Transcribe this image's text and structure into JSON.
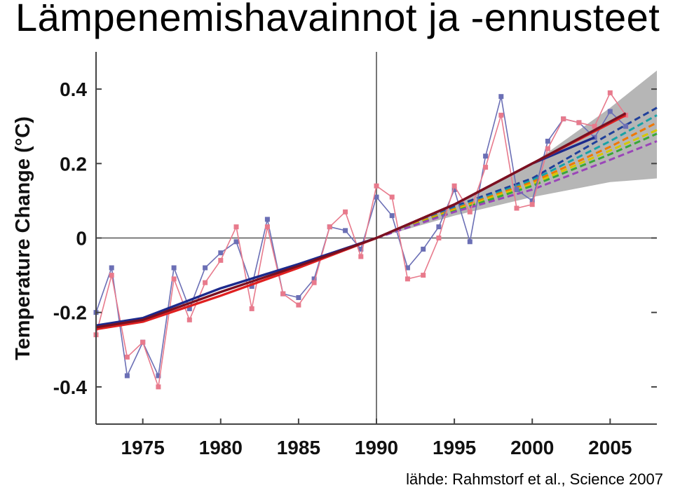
{
  "slide": {
    "title": "Lämpenemishavainnot ja -ennusteet",
    "citation": "lähde: Rahmstorf et al., Science 2007"
  },
  "chart_data": {
    "type": "line",
    "title": "",
    "xlabel": "",
    "ylabel": "Temperature Change (°C)",
    "xlim": [
      1972,
      2008
    ],
    "ylim": [
      -0.5,
      0.5
    ],
    "x_ticks": [
      1975,
      1980,
      1985,
      1990,
      1995,
      2000,
      2005
    ],
    "x_tick_labels": [
      "1975",
      "1980",
      "1985",
      "1990",
      "1995",
      "2000",
      "2005"
    ],
    "y_ticks": [
      0.4,
      0.2,
      0,
      -0.2,
      -0.4
    ],
    "y_tick_labels": [
      "0.4",
      "0.2",
      "0",
      "-0.2",
      "-0.4"
    ],
    "grid": false,
    "reference_lines": {
      "x": 1990,
      "y": 0
    },
    "projection_range": {
      "x": [
        1990,
        1995,
        2000,
        2005,
        2008
      ],
      "lower": [
        0,
        0.06,
        0.11,
        0.15,
        0.16
      ],
      "upper": [
        0,
        0.09,
        0.2,
        0.35,
        0.45
      ],
      "color": "#a9a9a9"
    },
    "series": [
      {
        "color": "#6b6fb5",
        "style": "markers",
        "x": [
          1972,
          1973,
          1974,
          1975,
          1976,
          1977,
          1978,
          1979,
          1980,
          1981,
          1982,
          1983,
          1984,
          1985,
          1986,
          1987,
          1988,
          1989,
          1990,
          1991,
          1992,
          1993,
          1994,
          1995,
          1996,
          1997,
          1998,
          1999,
          2000,
          2001,
          2002,
          2003,
          2004,
          2005,
          2006
        ],
        "values": [
          -0.2,
          -0.08,
          -0.37,
          -0.28,
          -0.37,
          -0.08,
          -0.19,
          -0.08,
          -0.04,
          -0.01,
          -0.13,
          0.05,
          -0.15,
          -0.16,
          -0.11,
          0.03,
          0.02,
          -0.03,
          0.11,
          0.06,
          -0.08,
          -0.03,
          0.03,
          0.13,
          -0.01,
          0.22,
          0.38,
          0.13,
          0.1,
          0.26,
          0.32,
          0.31,
          0.27,
          0.34,
          0.3
        ]
      },
      {
        "color": "#e87a8c",
        "style": "markers",
        "x": [
          1972,
          1973,
          1974,
          1975,
          1976,
          1977,
          1978,
          1979,
          1980,
          1981,
          1982,
          1983,
          1984,
          1985,
          1986,
          1987,
          1988,
          1989,
          1990,
          1991,
          1992,
          1993,
          1994,
          1995,
          1996,
          1997,
          1998,
          1999,
          2000,
          2001,
          2002,
          2003,
          2004,
          2005,
          2006
        ],
        "values": [
          -0.26,
          -0.1,
          -0.32,
          -0.28,
          -0.4,
          -0.11,
          -0.22,
          -0.12,
          -0.06,
          0.03,
          -0.19,
          0.03,
          -0.15,
          -0.18,
          -0.12,
          0.03,
          0.07,
          -0.05,
          0.14,
          0.11,
          -0.11,
          -0.1,
          0.0,
          0.14,
          0.07,
          0.19,
          0.33,
          0.08,
          0.09,
          0.24,
          0.32,
          0.31,
          0.3,
          0.39,
          0.33
        ]
      },
      {
        "color": "#1c2a8c",
        "style": "trend",
        "x": [
          1972,
          1975,
          1980,
          1985,
          1990,
          1995,
          2000,
          2004
        ],
        "values": [
          -0.235,
          -0.215,
          -0.135,
          -0.07,
          0.0,
          0.09,
          0.2,
          0.27
        ]
      },
      {
        "color": "#e02020",
        "style": "trend",
        "x": [
          1972,
          1975,
          1980,
          1985,
          1990,
          1995,
          2000,
          2006
        ],
        "values": [
          -0.245,
          -0.225,
          -0.155,
          -0.08,
          0.0,
          0.09,
          0.2,
          0.33
        ]
      },
      {
        "color": "#7a1020",
        "style": "trend",
        "x": [
          1972,
          1975,
          1980,
          1985,
          1990,
          1995,
          2000,
          2006
        ],
        "values": [
          -0.24,
          -0.22,
          -0.145,
          -0.075,
          0.0,
          0.09,
          0.2,
          0.335
        ]
      },
      {
        "color": "#20409a",
        "style": "projection",
        "x": [
          1990,
          1995,
          2000,
          2005,
          2008
        ],
        "values": [
          0.0,
          0.085,
          0.16,
          0.28,
          0.35
        ]
      },
      {
        "color": "#19a2a6",
        "style": "projection",
        "x": [
          1990,
          1995,
          2000,
          2005,
          2008
        ],
        "values": [
          0.0,
          0.08,
          0.155,
          0.26,
          0.33
        ]
      },
      {
        "color": "#f07800",
        "style": "projection",
        "x": [
          1990,
          1995,
          2000,
          2005,
          2008
        ],
        "values": [
          0.0,
          0.078,
          0.15,
          0.245,
          0.31
        ]
      },
      {
        "color": "#d6c800",
        "style": "projection",
        "x": [
          1990,
          1995,
          2000,
          2005,
          2008
        ],
        "values": [
          0.0,
          0.075,
          0.145,
          0.235,
          0.29
        ]
      },
      {
        "color": "#38a838",
        "style": "projection",
        "x": [
          1990,
          1995,
          2000,
          2005,
          2008
        ],
        "values": [
          0.0,
          0.072,
          0.14,
          0.225,
          0.28
        ]
      },
      {
        "color": "#9a45b8",
        "style": "projection",
        "x": [
          1990,
          1995,
          2000,
          2005,
          2008
        ],
        "values": [
          0.0,
          0.07,
          0.13,
          0.21,
          0.26
        ]
      }
    ]
  }
}
